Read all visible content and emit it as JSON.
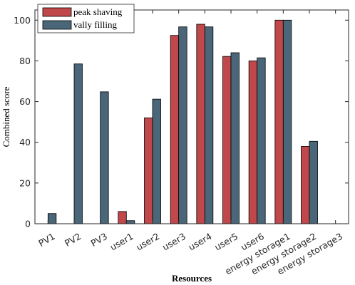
{
  "chart_data": {
    "type": "bar",
    "title": "",
    "xlabel": "Resources",
    "ylabel": "Combined score",
    "ylim": [
      0,
      105
    ],
    "yticks": [
      0,
      20,
      40,
      60,
      80,
      100
    ],
    "grid": false,
    "legend_position": "top-left",
    "categories": [
      "PV1",
      "PV2",
      "PV3",
      "user1",
      "user2",
      "user3",
      "user4",
      "user5",
      "user6",
      "energy storage1",
      "energy storage2",
      "energy storage3"
    ],
    "series": [
      {
        "name": "peak shaving",
        "color": "#c0474a",
        "values": [
          0,
          0,
          0,
          6,
          52,
          92.5,
          98,
          82.2,
          80,
          100,
          38,
          0
        ]
      },
      {
        "name": "vally filling",
        "color": "#4a6679",
        "values": [
          5,
          78.5,
          64.8,
          1.5,
          61.2,
          96.7,
          96.7,
          84,
          81.5,
          100,
          40.5,
          0
        ]
      }
    ]
  }
}
